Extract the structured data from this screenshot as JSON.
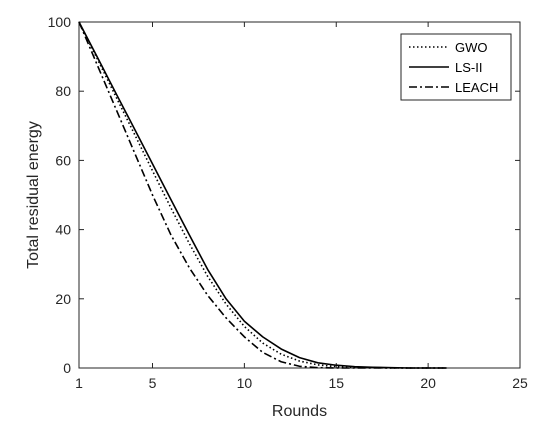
{
  "chart_data": {
    "type": "line",
    "title": "",
    "xlabel": "Rounds",
    "ylabel": "Total residual energy",
    "xlim": [
      1,
      25
    ],
    "ylim": [
      0,
      100
    ],
    "xticks": [
      1,
      5,
      10,
      15,
      20,
      25
    ],
    "yticks": [
      0,
      20,
      40,
      60,
      80,
      100
    ],
    "grid": false,
    "legend_position": "top-right",
    "x": [
      1,
      2,
      3,
      4,
      5,
      6,
      7,
      8,
      9,
      10,
      11,
      12,
      13,
      14,
      15,
      16,
      17,
      18,
      19,
      20,
      21
    ],
    "series": [
      {
        "name": "GWO",
        "style": "dotted",
        "values": [
          100,
          89.3,
          78.5,
          67.8,
          57,
          46.3,
          36,
          26.5,
          18.5,
          12,
          7.2,
          4,
          2,
          0.9,
          0.4,
          0.2,
          0.1,
          0,
          0,
          0,
          0
        ]
      },
      {
        "name": "LS-II",
        "style": "solid",
        "values": [
          100,
          89.8,
          79.5,
          69.3,
          59,
          48.7,
          38.5,
          28.5,
          20,
          13.5,
          9,
          5.5,
          3,
          1.5,
          0.8,
          0.4,
          0.2,
          0.1,
          0,
          0,
          0
        ]
      },
      {
        "name": "LEACH",
        "style": "dashdot",
        "values": [
          100,
          87.5,
          75,
          62.5,
          50,
          38.5,
          29,
          21,
          14.5,
          9,
          4.5,
          1.8,
          0.5,
          0.1,
          0,
          0,
          0,
          0,
          0,
          0,
          0
        ]
      }
    ]
  }
}
